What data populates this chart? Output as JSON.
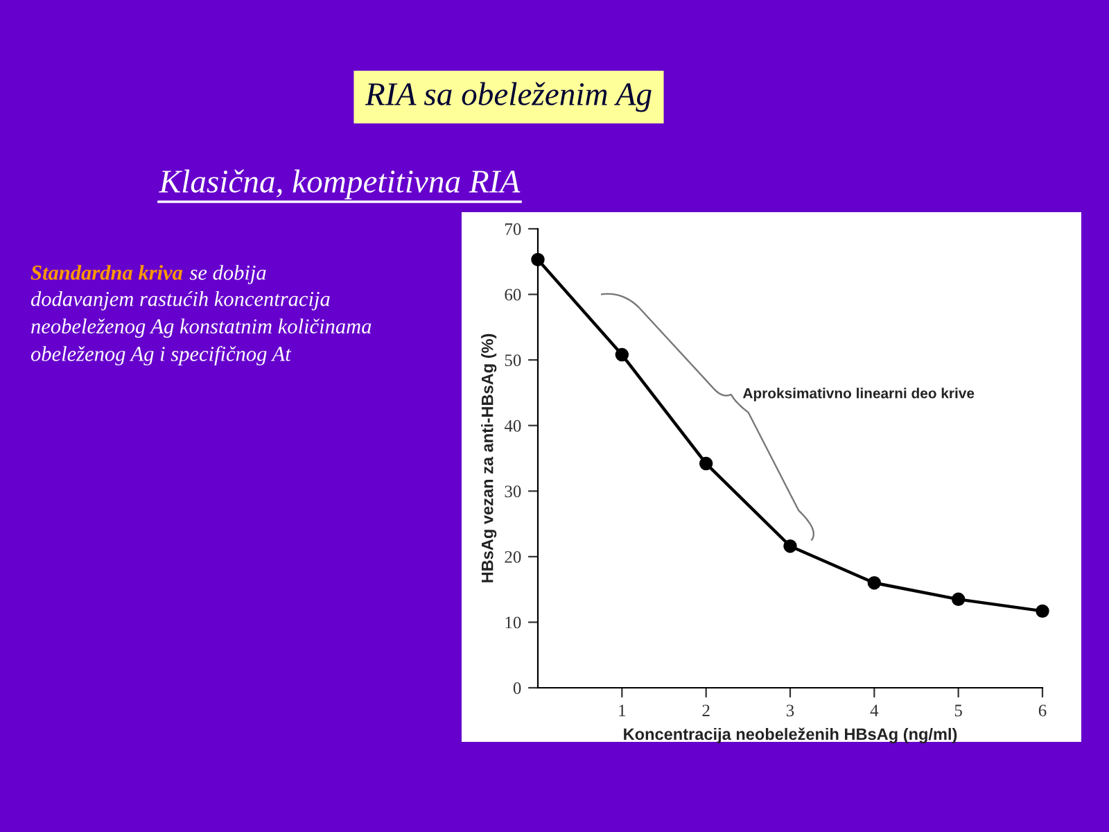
{
  "chart_data": {
    "type": "line",
    "title": "RIA sa obeleženim Ag",
    "subtitle": "Klasična, kompetitivna RIA",
    "xlabel": "Koncentracija neobeleženih HBsAg (ng/ml)",
    "ylabel": "HBsAg vezan za anti-HBsAg (%)",
    "x": [
      0,
      1,
      2,
      3,
      4,
      5,
      6
    ],
    "series": [
      {
        "color": "#000000",
        "values": [
          65.3,
          50.8,
          34.2,
          21.6,
          16,
          13.5,
          11.7
        ]
      }
    ],
    "xlim": [
      0,
      6
    ],
    "xticks": [
      1,
      2,
      3,
      4,
      5,
      6
    ],
    "ylim": [
      0,
      70
    ],
    "yticks": [
      0,
      10,
      20,
      30,
      40,
      50,
      60,
      70
    ],
    "marker": "circle",
    "line_style": "solid",
    "grid": false,
    "legend": false,
    "annotations": [
      "Aproksimativno linearni deo krive",
      "Standardna kriva",
      "se dobija\ndodavanjem rastućih koncentracija\nneobeleženog Ag konstatnim količinama\nobeleženog Ag i specifičnog At"
    ]
  }
}
